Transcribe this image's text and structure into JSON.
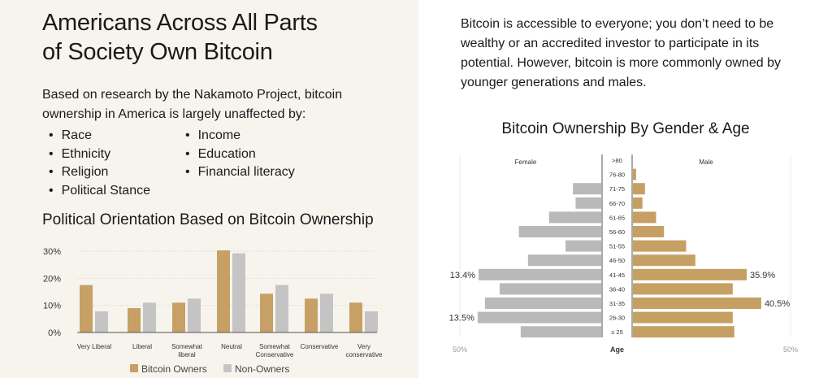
{
  "left": {
    "title_line1": "Americans Across All Parts",
    "title_line2": "of Society Own Bitcoin",
    "intro": "Based on research by the Nakamoto Project, bitcoin ownership in America is largely unaffected by:",
    "bullets_col1": [
      "Race",
      "Ethnicity",
      "Religion",
      "Political Stance"
    ],
    "bullets_col2": [
      "Income",
      "Education",
      "Financial literacy"
    ]
  },
  "right": {
    "text": "Bitcoin is accessible to everyone; you don’t need to be wealthy or an accredited investor to participate in its potential. However, bitcoin is more commonly owned by younger generations and males."
  },
  "colors": {
    "owners": "#c6a065",
    "non_owners": "#c4c4c4",
    "female": "#b9b9b9",
    "male": "#c6a062"
  },
  "chart_data": [
    {
      "type": "bar",
      "title": "Political Orientation Based on Bitcoin Ownership",
      "categories": [
        "Very Liberal",
        "Liberal",
        "Somewhat liberal",
        "Neutral",
        "Somewhat Conservative",
        "Conservative",
        "Very conservative"
      ],
      "category_lines": [
        [
          "Very Liberal"
        ],
        [
          "Liberal"
        ],
        [
          "Somewhat",
          "liberal"
        ],
        [
          "Neutral"
        ],
        [
          "Somewhat",
          "Conservative"
        ],
        [
          "Conservative"
        ],
        [
          "Very",
          "conservative"
        ]
      ],
      "series": [
        {
          "name": "Bitcoin Owners",
          "values": [
            17.5,
            9,
            11,
            30.3,
            14.3,
            12.5,
            11
          ]
        },
        {
          "name": "Non-Owners",
          "values": [
            7.8,
            11,
            12.5,
            29.2,
            17.5,
            14.3,
            7.8
          ]
        }
      ],
      "yticks": [
        "0%",
        "10%",
        "20%",
        "30%"
      ],
      "ylim": [
        0,
        30
      ],
      "grid": true,
      "legend": "bottom"
    },
    {
      "type": "bar",
      "subtype": "population-pyramid",
      "title": "Bitcoin Ownership By Gender & Age",
      "categories": [
        ">80",
        "76-80",
        "71-75",
        "66-70",
        "61-65",
        "56-60",
        "51-55",
        "46-50",
        "41-45",
        "36-40",
        "31-35",
        "26-30",
        "≤ 25"
      ],
      "series": [
        {
          "name": "Female",
          "values": [
            0,
            0,
            3.1,
            2.8,
            5.7,
            9.0,
            3.9,
            8.0,
            13.4,
            11.1,
            12.7,
            13.5,
            8.8
          ]
        },
        {
          "name": "Male",
          "values": [
            0,
            1.0,
            3.8,
            3.0,
            7.3,
            9.8,
            16.8,
            19.7,
            35.9,
            31.5,
            40.5,
            31.5,
            32.0
          ]
        }
      ],
      "data_labels": {
        "female": {
          "41-45": "13.4%",
          "26-30": "13.5%"
        },
        "male": {
          "41-45": "35.9%",
          "31-35": "40.5%"
        }
      },
      "xlabel": "Age",
      "axis_labels": {
        "left": "50%",
        "right": "50%"
      },
      "xlim": [
        0,
        50
      ]
    }
  ]
}
